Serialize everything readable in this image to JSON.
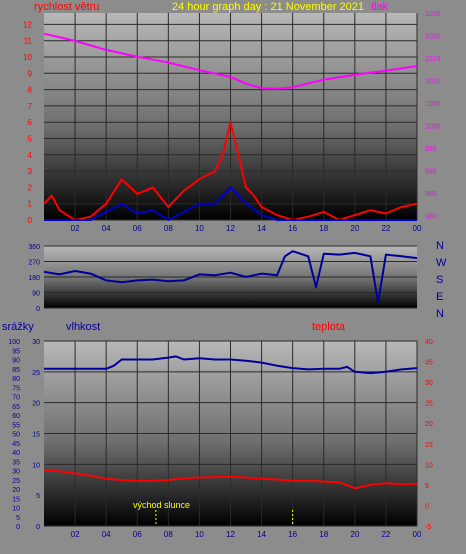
{
  "header": {
    "wind_label": "rychlost větru",
    "title": "24 hour graph day : 21 November 2021",
    "pressure_label": "tlak",
    "precip_label": "srážky",
    "humidity_label": "vlhkost",
    "temp_label": "teplota",
    "sunrise_label": "východ slunce"
  },
  "colors": {
    "wind": "#ff0000",
    "gust": "#0000cc",
    "pressure": "#ff00ff",
    "direction": "#000099",
    "humidity": "#000099",
    "temperature": "#ff0000",
    "title": "#ffff00",
    "sun_marker": "#ffff00"
  },
  "chart_data": [
    {
      "type": "line",
      "name": "wind_and_pressure",
      "x_ticks": [
        "02",
        "04",
        "06",
        "08",
        "10",
        "12",
        "14",
        "16",
        "18",
        "20",
        "22",
        "00"
      ],
      "xlim": [
        0,
        24
      ],
      "y_left": {
        "label": "rychlost větru",
        "lim": [
          0,
          12.7
        ],
        "ticks": [
          0,
          1,
          2,
          3,
          4,
          5,
          6,
          7,
          8,
          9,
          10,
          11,
          12
        ]
      },
      "y_right": {
        "label": "tlak",
        "lim": [
          979,
          1025
        ],
        "ticks": [
          980,
          985,
          990,
          995,
          1000,
          1005,
          1010,
          1015,
          1020,
          1025
        ]
      },
      "series": [
        {
          "name": "tlak",
          "axis": "right",
          "x": [
            0,
            2,
            4,
            6,
            8,
            10,
            12,
            13,
            14,
            15,
            16,
            18,
            20,
            22,
            24
          ],
          "y": [
            1020.4,
            1018.8,
            1016.8,
            1015.3,
            1014.0,
            1012.3,
            1010.8,
            1009.3,
            1008.3,
            1008.2,
            1008.5,
            1010.2,
            1011.3,
            1012.2,
            1013.2
          ]
        },
        {
          "name": "rychlost větru",
          "axis": "left",
          "x": [
            0,
            0.5,
            1,
            1.5,
            2,
            3,
            4,
            5,
            6,
            7,
            8,
            9,
            10,
            11,
            11.5,
            12,
            12.5,
            13,
            13.5,
            14,
            15,
            16,
            17,
            18,
            19,
            20,
            21,
            22,
            23,
            24
          ],
          "y": [
            1,
            1.5,
            0.6,
            0.3,
            0,
            0.2,
            1,
            2.5,
            1.6,
            2,
            0.8,
            1.8,
            2.5,
            3,
            4,
            6,
            4,
            2,
            1.5,
            0.8,
            0.3,
            0,
            0.2,
            0.5,
            0,
            0.3,
            0.6,
            0.4,
            0.8,
            1
          ]
        },
        {
          "name": "nárazy",
          "axis": "left",
          "x": [
            0,
            3,
            4,
            5,
            6,
            7,
            8,
            9,
            10,
            11,
            12,
            13,
            14,
            15,
            24
          ],
          "y": [
            0,
            0,
            0.5,
            1,
            0.4,
            0.6,
            0,
            0.5,
            1,
            1,
            2,
            1,
            0.3,
            0,
            0
          ]
        }
      ]
    },
    {
      "type": "line",
      "name": "wind_direction",
      "xlim": [
        0,
        24
      ],
      "y_left": {
        "lim": [
          0,
          360
        ],
        "ticks": [
          0,
          90,
          180,
          270,
          360
        ]
      },
      "y_right_labels": [
        "N",
        "W",
        "S",
        "E",
        "N"
      ],
      "series": [
        {
          "name": "směr větru",
          "x": [
            0,
            1,
            2,
            3,
            4,
            5,
            6,
            7,
            8,
            9,
            10,
            11,
            12,
            13,
            14,
            15,
            15.5,
            16,
            17,
            17.5,
            18,
            19,
            20,
            21,
            21.5,
            22,
            23,
            24
          ],
          "y": [
            210,
            195,
            215,
            200,
            160,
            150,
            160,
            165,
            155,
            160,
            195,
            190,
            205,
            180,
            200,
            190,
            300,
            330,
            300,
            120,
            315,
            310,
            320,
            300,
            30,
            310,
            300,
            290
          ]
        }
      ]
    },
    {
      "type": "line",
      "name": "humidity_and_temperature",
      "x_ticks": [
        "02",
        "04",
        "06",
        "08",
        "10",
        "12",
        "14",
        "16",
        "18",
        "20",
        "22",
        "00"
      ],
      "xlim": [
        0,
        24
      ],
      "y_precip": {
        "label": "srážky",
        "lim": [
          0,
          100
        ],
        "ticks": [
          0,
          5,
          10,
          15,
          20,
          25,
          30,
          35,
          40,
          45,
          50,
          55,
          60,
          65,
          70,
          75,
          80,
          85,
          90,
          95,
          100
        ]
      },
      "y_humidity": {
        "label": "vlhkost",
        "lim": [
          0,
          30
        ],
        "ticks": [
          0,
          5,
          10,
          15,
          20,
          25,
          30
        ]
      },
      "y_temp": {
        "label": "teplota",
        "lim": [
          -5,
          40
        ],
        "ticks": [
          -5,
          0,
          5,
          10,
          15,
          20,
          25,
          30,
          35,
          40
        ]
      },
      "annotations": [
        {
          "text": "východ slunce",
          "x": 7.2
        },
        {
          "x": 16.0
        }
      ],
      "series": [
        {
          "name": "vlhkost",
          "axis": "humidity",
          "x": [
            0,
            2,
            4,
            4.5,
            5,
            6,
            7,
            8,
            8.5,
            9,
            10,
            11,
            12,
            13,
            14,
            15,
            16,
            17,
            18,
            19,
            19.5,
            20,
            21,
            22,
            23,
            24
          ],
          "y": [
            25.5,
            25.5,
            25.5,
            26,
            27,
            27,
            27,
            27.3,
            27.5,
            27,
            27.2,
            27,
            27,
            26.8,
            26.5,
            26,
            25.6,
            25.4,
            25.5,
            25.5,
            25.8,
            25,
            24.8,
            25,
            25.4,
            25.6
          ]
        },
        {
          "name": "teplota",
          "axis": "temp",
          "x": [
            0,
            1,
            2,
            3,
            4,
            5,
            6,
            7,
            8,
            9,
            10,
            11,
            12,
            13,
            14,
            15,
            16,
            17,
            18,
            19,
            20,
            21,
            22,
            23,
            24
          ],
          "y": [
            8.5,
            8.3,
            7.8,
            7.2,
            6.5,
            6.2,
            6.0,
            6.0,
            6.2,
            6.6,
            6.8,
            6.9,
            7.0,
            6.8,
            6.5,
            6.3,
            6.0,
            6.0,
            5.8,
            5.6,
            4.2,
            5.0,
            5.4,
            5.2,
            5.3
          ]
        }
      ]
    }
  ]
}
